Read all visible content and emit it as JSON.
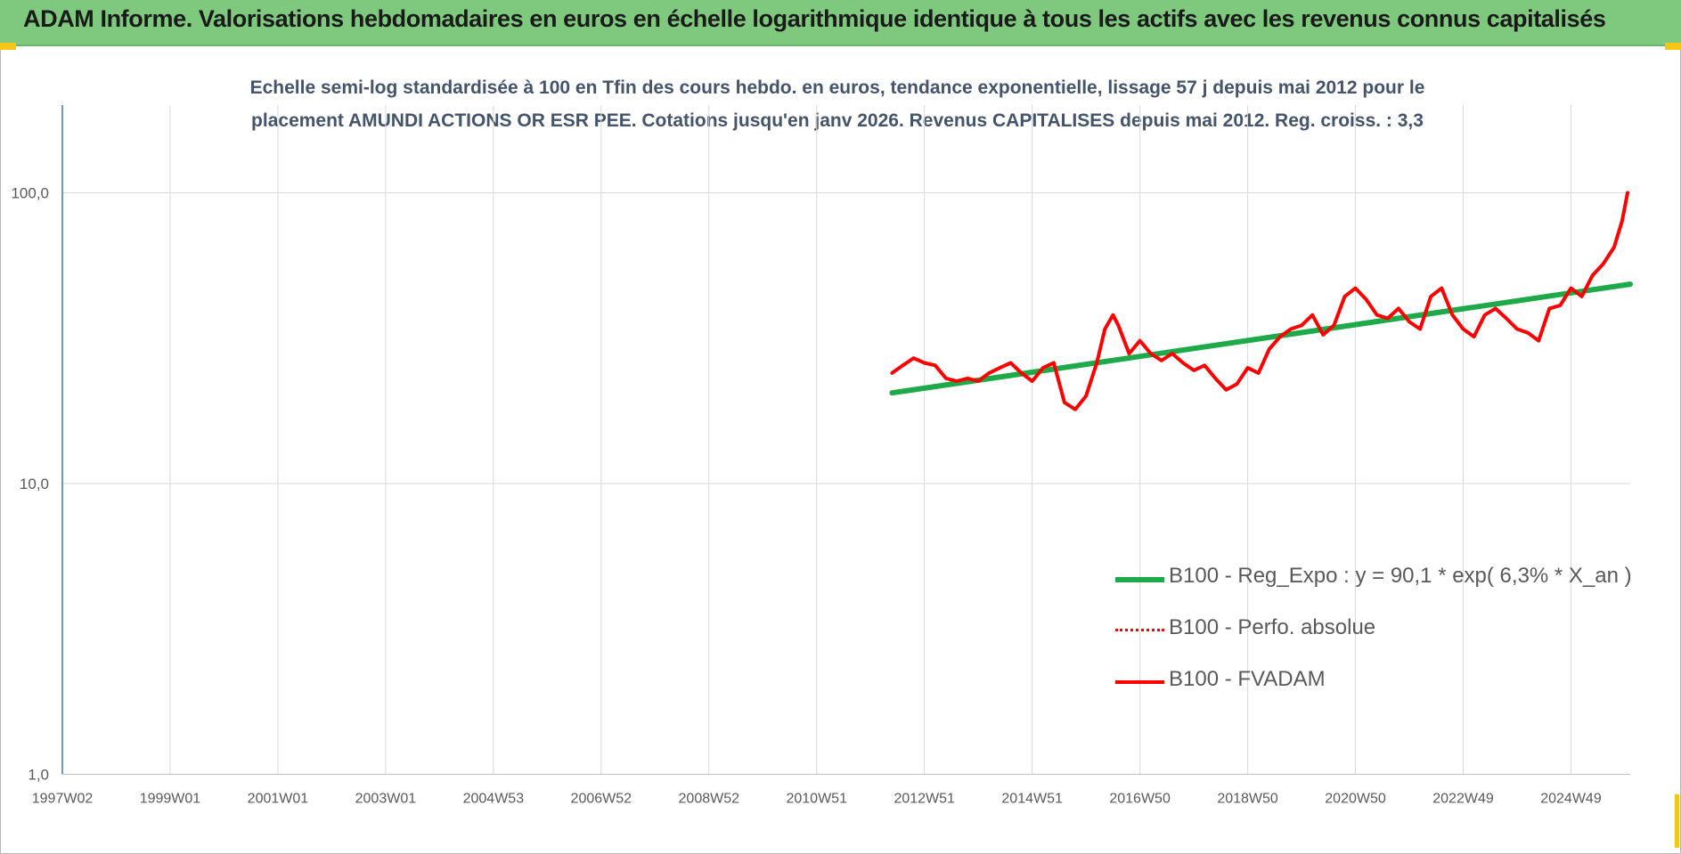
{
  "banner": {
    "title": "ADAM Informe. Valorisations hebdomadaires en euros en échelle logarithmique identique à tous les actifs avec les revenus connus capitalisés"
  },
  "subtitle": {
    "line1": "Echelle semi-log standardisée à 100 en Tfin des cours hebdo. en euros, tendance exponentielle, lissage 57 j depuis mai 2012 pour le",
    "line2": "placement AMUNDI ACTIONS OR ESR PEE. Cotations jusqu'en janv 2026.  Revenus CAPITALISES depuis mai 2012.  Reg. croiss. : 3,3"
  },
  "colors": {
    "banner": "#7fc97f",
    "accent_corner": "#f5c518",
    "trend": "#1faa4a",
    "fvadam": "#ff0000",
    "axis_text": "#595959",
    "grid": "#d9d9d9"
  },
  "chart_data": {
    "type": "line",
    "y_scale": "log",
    "ylim": [
      1,
      200
    ],
    "x_range": [
      1997.0,
      2026.1
    ],
    "y_ticks": [
      {
        "value": 1,
        "label": "1,0"
      },
      {
        "value": 10,
        "label": "10,0"
      },
      {
        "value": 100,
        "label": "100,0"
      }
    ],
    "x_ticks": [
      {
        "value": 1997.0,
        "label": "1997W02"
      },
      {
        "value": 1999.0,
        "label": "1999W01"
      },
      {
        "value": 2001.0,
        "label": "2001W01"
      },
      {
        "value": 2003.0,
        "label": "2003W01"
      },
      {
        "value": 2005.0,
        "label": "2004W53"
      },
      {
        "value": 2007.0,
        "label": "2006W52"
      },
      {
        "value": 2009.0,
        "label": "2008W52"
      },
      {
        "value": 2011.0,
        "label": "2010W51"
      },
      {
        "value": 2013.0,
        "label": "2012W51"
      },
      {
        "value": 2015.0,
        "label": "2014W51"
      },
      {
        "value": 2017.0,
        "label": "2016W50"
      },
      {
        "value": 2019.0,
        "label": "2018W50"
      },
      {
        "value": 2021.0,
        "label": "2020W50"
      },
      {
        "value": 2023.0,
        "label": "2022W49"
      },
      {
        "value": 2025.0,
        "label": "2024W49"
      }
    ],
    "grid": true,
    "legend_position": "right-center",
    "series": [
      {
        "name": "B100 - Reg_Expo : y = 90,1 * exp( 6,3% *  X_an )",
        "style": "solid-thick",
        "color": "#1faa4a",
        "x": [
          2012.4,
          2026.1
        ],
        "y": [
          20.5,
          48.5
        ]
      },
      {
        "name": "B100 - Perfo. absolue",
        "style": "dotted",
        "color": "#ff0000",
        "x": [],
        "y": []
      },
      {
        "name": "B100 - FVADAM",
        "style": "solid",
        "color": "#ff0000",
        "x": [
          2012.4,
          2012.6,
          2012.8,
          2013.0,
          2013.2,
          2013.4,
          2013.6,
          2013.8,
          2014.0,
          2014.2,
          2014.4,
          2014.6,
          2014.8,
          2015.0,
          2015.2,
          2015.4,
          2015.6,
          2015.8,
          2016.0,
          2016.2,
          2016.35,
          2016.5,
          2016.6,
          2016.8,
          2017.0,
          2017.2,
          2017.4,
          2017.6,
          2017.8,
          2018.0,
          2018.2,
          2018.4,
          2018.6,
          2018.8,
          2019.0,
          2019.2,
          2019.4,
          2019.6,
          2019.8,
          2020.0,
          2020.2,
          2020.4,
          2020.6,
          2020.8,
          2021.0,
          2021.2,
          2021.4,
          2021.6,
          2021.8,
          2022.0,
          2022.2,
          2022.4,
          2022.6,
          2022.8,
          2023.0,
          2023.2,
          2023.4,
          2023.6,
          2023.8,
          2024.0,
          2024.2,
          2024.4,
          2024.6,
          2024.8,
          2025.0,
          2025.2,
          2025.4,
          2025.6,
          2025.8,
          2025.95,
          2026.05
        ],
        "y": [
          24,
          25.5,
          27,
          26,
          25.5,
          23,
          22.5,
          23,
          22.5,
          24,
          25,
          26,
          24,
          22.5,
          25,
          26,
          19,
          18,
          20,
          26,
          34,
          38,
          35,
          28,
          31,
          28,
          26.5,
          28,
          26,
          24.5,
          25.5,
          23,
          21,
          22,
          25,
          24,
          29,
          32,
          34,
          35,
          38,
          32.5,
          35,
          44,
          47,
          43,
          38,
          37,
          40,
          36,
          34,
          44,
          47,
          38,
          34,
          32,
          38,
          40,
          37,
          34,
          33,
          31,
          40,
          41,
          47,
          44,
          52,
          57,
          65,
          80,
          100
        ]
      }
    ]
  }
}
